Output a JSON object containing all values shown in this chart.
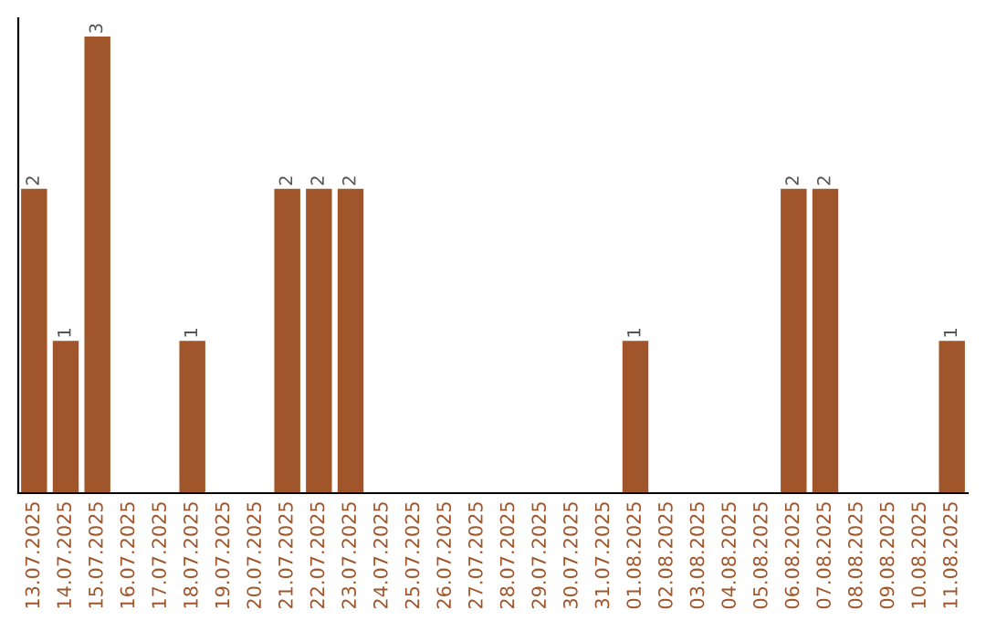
{
  "chart_data": {
    "type": "bar",
    "categories": [
      "13.07.2025",
      "14.07.2025",
      "15.07.2025",
      "16.07.2025",
      "17.07.2025",
      "18.07.2025",
      "19.07.2025",
      "20.07.2025",
      "21.07.2025",
      "22.07.2025",
      "23.07.2025",
      "24.07.2025",
      "25.07.2025",
      "26.07.2025",
      "27.07.2025",
      "28.07.2025",
      "29.07.2025",
      "30.07.2025",
      "31.07.2025",
      "01.08.2025",
      "02.08.2025",
      "03.08.2025",
      "04.08.2025",
      "05.08.2025",
      "06.08.2025",
      "07.08.2025",
      "08.08.2025",
      "09.08.2025",
      "10.08.2025",
      "11.08.2025"
    ],
    "values": [
      2,
      1,
      3,
      0,
      0,
      1,
      0,
      0,
      2,
      2,
      2,
      0,
      0,
      0,
      0,
      0,
      0,
      0,
      0,
      1,
      0,
      0,
      0,
      0,
      2,
      2,
      0,
      0,
      0,
      1
    ],
    "value_labels": [
      "2",
      "1",
      "3",
      null,
      null,
      "1",
      null,
      null,
      "2",
      "2",
      "2",
      null,
      null,
      null,
      null,
      null,
      null,
      null,
      null,
      "1",
      null,
      null,
      null,
      null,
      "2",
      "2",
      null,
      null,
      null,
      "1"
    ],
    "color": "#a0562a",
    "ylim": [
      0,
      3.12
    ],
    "tick_labels": "x",
    "grid": false,
    "legend": false
  }
}
